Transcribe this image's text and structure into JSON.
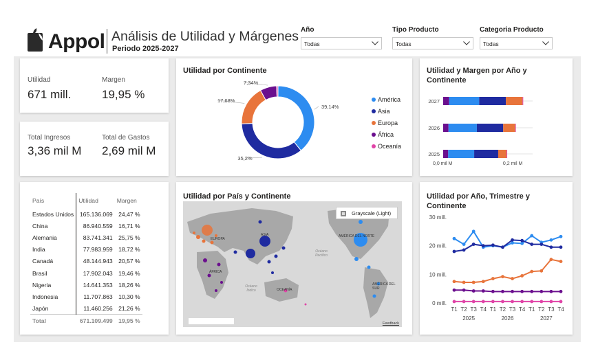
{
  "header": {
    "brand": "Appol",
    "title": "Análisis de Utilidad y Márgenes",
    "subtitle": "Periodo 2025-2027"
  },
  "slicers": [
    {
      "label": "Año",
      "value": "Todas"
    },
    {
      "label": "Tipo Producto",
      "value": "Todas"
    },
    {
      "label": "Categoria Producto",
      "value": "Todas"
    }
  ],
  "kpis": {
    "utilidad_label": "Utilidad",
    "utilidad_value": "671 mill.",
    "margen_label": "Margen",
    "margen_value": "19,95 %",
    "ingresos_label": "Total Ingresos",
    "ingresos_value": "3,36 mil M",
    "gastos_label": "Total de Gastos",
    "gastos_value": "2,69 mil M"
  },
  "table": {
    "headers": [
      "País",
      "Utilidad",
      "Margen"
    ],
    "rows": [
      [
        "Estados Unidos",
        "165.136.069",
        "24,47 %"
      ],
      [
        "China",
        "86.940.559",
        "16,71 %"
      ],
      [
        "Alemania",
        "83.741.341",
        "25,75 %"
      ],
      [
        "India",
        "77.983.959",
        "18,72 %"
      ],
      [
        "Canadá",
        "48.144.943",
        "20,57 %"
      ],
      [
        "Brasil",
        "17.902.043",
        "19,46 %"
      ],
      [
        "Nigeria",
        "14.641.353",
        "18,26 %"
      ],
      [
        "Indonesia",
        "11.707.863",
        "10,30 %"
      ],
      [
        "Japón",
        "11.460.256",
        "21,26 %"
      ]
    ],
    "total": [
      "Total",
      "671.109.499",
      "19,95 %"
    ]
  },
  "colors": {
    "america": "#2D8CF0",
    "asia": "#1F2BA0",
    "europa": "#E8743B",
    "africa": "#6B0F8E",
    "oceania": "#E044A7"
  },
  "map": {
    "title": "Utilidad por País y Continente",
    "style_label": "Grayscale (Light)",
    "labels": [
      "EUROPA",
      "ASIA",
      "AMÉRICA DEL NORTE",
      "ÁFRICA",
      "OCEANÍA",
      "AMÉRICA DEL SUR",
      "Océano Pacífico",
      "Océano Índico"
    ],
    "feedback": "Feedback"
  },
  "chart_data": [
    {
      "type": "pie",
      "title": "Utilidad por Continente",
      "categories": [
        "América",
        "Asia",
        "Europa",
        "África",
        "Oceanía"
      ],
      "values": [
        39.14,
        35.2,
        17.68,
        7.34,
        0.64
      ],
      "data_labels": [
        "39,14%",
        "35,2%",
        "17,68%",
        "7,34%",
        ""
      ],
      "donut": true,
      "legend": "right"
    },
    {
      "type": "bar",
      "orientation": "horizontal",
      "stacked": true,
      "title": "Utilidad y Margen por Año y Continente",
      "categories": [
        "2027",
        "2026",
        "2025"
      ],
      "series": [
        {
          "name": "África",
          "values": [
            0.018,
            0.016,
            0.015
          ]
        },
        {
          "name": "América",
          "values": [
            0.09,
            0.085,
            0.078
          ]
        },
        {
          "name": "Asia",
          "values": [
            0.08,
            0.079,
            0.072
          ]
        },
        {
          "name": "Europa",
          "values": [
            0.05,
            0.036,
            0.025
          ]
        },
        {
          "name": "Oceanía",
          "values": [
            0.002,
            0.002,
            0.002
          ]
        }
      ],
      "tick_labels": [
        "0,0 mil M",
        "0,2 mil M"
      ],
      "xlim": [
        0,
        0.26
      ]
    },
    {
      "type": "line",
      "title": "Utilidad por Año, Trimestre y Continente",
      "x": [
        "T1",
        "T2",
        "T3",
        "T4",
        "T1",
        "T2",
        "T3",
        "T4",
        "T1",
        "T2",
        "T3",
        "T4"
      ],
      "year_labels": [
        "2025",
        "2026",
        "2027"
      ],
      "yticks": [
        "30 mill.",
        "20 mill.",
        "10 mill.",
        "0 mill."
      ],
      "ylim": [
        0,
        30
      ],
      "series": [
        {
          "name": "América",
          "values": [
            22.5,
            20.5,
            25,
            19.5,
            20,
            19.5,
            21,
            20.8,
            23.5,
            21.2,
            22,
            23.2
          ]
        },
        {
          "name": "Asia",
          "values": [
            18,
            18.5,
            20.5,
            20,
            20.2,
            19.5,
            22,
            21.8,
            20.5,
            20.5,
            19.5,
            19.5
          ]
        },
        {
          "name": "Europa",
          "values": [
            7.5,
            7.2,
            7.2,
            7.5,
            8.5,
            9.2,
            8.5,
            9.5,
            11,
            11.2,
            15.2,
            14.5
          ]
        },
        {
          "name": "África",
          "values": [
            4.5,
            4.5,
            4.2,
            4.2,
            4.0,
            4.0,
            4.0,
            4.0,
            4.0,
            4.0,
            4.0,
            4.0
          ]
        },
        {
          "name": "Oceanía",
          "values": [
            0.5,
            0.5,
            0.5,
            0.5,
            0.5,
            0.5,
            0.5,
            0.5,
            0.5,
            0.5,
            0.5,
            0.5
          ]
        }
      ]
    }
  ]
}
